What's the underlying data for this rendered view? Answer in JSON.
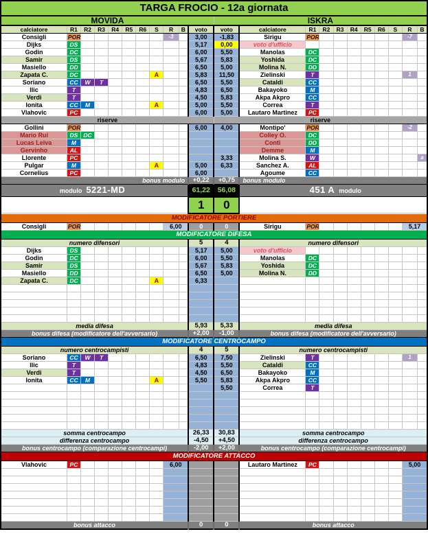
{
  "title": "TARGA FROCIO - 12a giornata",
  "home_team": "MOVIDA",
  "away_team": "ISKRA",
  "headers": {
    "player": "calciatore",
    "r": [
      "R1",
      "R2",
      "R3",
      "R4",
      "R5",
      "R6"
    ],
    "s": "S",
    "rr": "R",
    "b": "B",
    "voto": "voto"
  },
  "labels": {
    "riserve": "riserve",
    "bonus_modulo": "bonus modulo",
    "modulo": "modulo",
    "mod_portiere": "MODIFICATORE PORTIERE",
    "mod_difesa": "MODIFICATORE DIFESA",
    "mod_centrocampo": "MODIFICATORE CENTROCAMPO",
    "mod_attacco": "MODIFICATORE ATTACCO",
    "numero_difensori": "numero difensori",
    "media_difesa": "media difesa",
    "bonus_difesa": "bonus difesa (modificatore dell'avversario)",
    "numero_centrocampisti": "numero centrocampisti",
    "somma_centrocampo": "somma centrocampo",
    "differenza_centrocampo": "differenza centrocampo",
    "bonus_centrocampo": "bonus centrocampo (comparazione centrocampi)",
    "bonus_attacco": "bonus attacco"
  },
  "colors": {
    "main_green": "#92d050",
    "light_green": "#d7e4bc",
    "voto_blue": "#95b3d7",
    "role_green": "#00b050",
    "role_blue": "#0070c0",
    "role_purple": "#7030a0",
    "role_red": "#d21414",
    "role_orange": "#e8954f",
    "malus_purple": "#b2a1c7",
    "pink_row": "#d99795",
    "bar_orange": "#e26b0a",
    "bar_red": "#c00000",
    "dark_gray": "#808080",
    "mid_gray": "#9e9e9e",
    "band_gray": "#a6a6a6",
    "yellow": "#ffff00"
  },
  "lineup": {
    "home": [
      {
        "name": "Consigli",
        "roles": [
          [
            "POR",
            "por"
          ]
        ],
        "s": "",
        "r": "-3",
        "b": "",
        "voto": "3,00"
      },
      {
        "name": "Dijks",
        "roles": [
          [
            "DS",
            "df"
          ]
        ],
        "s": "",
        "r": "",
        "b": "",
        "voto": "5,17"
      },
      {
        "name": "Godin",
        "roles": [
          [
            "DC",
            "df"
          ]
        ],
        "s": "",
        "r": "",
        "b": "",
        "voto": "6,00"
      },
      {
        "name": "Samir",
        "roles": [
          [
            "DS",
            "df"
          ]
        ],
        "s": "",
        "r": "",
        "b": "",
        "voto": "5,67",
        "hl": true
      },
      {
        "name": "Masiello",
        "roles": [
          [
            "DD",
            "df"
          ]
        ],
        "s": "",
        "r": "",
        "b": "",
        "voto": "6,50"
      },
      {
        "name": "Zapata C.",
        "roles": [
          [
            "DC",
            "df"
          ]
        ],
        "s": "A",
        "r": "",
        "b": "",
        "voto": "5,83",
        "hl": true
      },
      {
        "name": "Soriano",
        "roles": [
          [
            "CC",
            "mf"
          ],
          [
            "W",
            "tq"
          ],
          [
            "T",
            "tq"
          ]
        ],
        "s": "",
        "r": "",
        "b": "",
        "voto": "6,50"
      },
      {
        "name": "Ilic",
        "roles": [
          [
            "T",
            "tq"
          ]
        ],
        "s": "",
        "r": "",
        "b": "",
        "voto": "4,83"
      },
      {
        "name": "Verdi",
        "roles": [
          [
            "T",
            "tq"
          ]
        ],
        "s": "",
        "r": "",
        "b": "",
        "voto": "4,50",
        "hl": true
      },
      {
        "name": "Ionita",
        "roles": [
          [
            "CC",
            "mf"
          ],
          [
            "M",
            "mf"
          ]
        ],
        "s": "A",
        "r": "",
        "b": "",
        "voto": "5,00"
      },
      {
        "name": "Vlahovic",
        "roles": [
          [
            "PC",
            "at"
          ]
        ],
        "s": "",
        "r": "",
        "b": "",
        "voto": "6,00"
      }
    ],
    "away": [
      {
        "name": "Sirigu",
        "roles": [
          [
            "POR",
            "por"
          ]
        ],
        "s": "",
        "r": "-7",
        "b": "",
        "voto": "-1,83"
      },
      {
        "name": "voto d'ufficio",
        "roles": [],
        "s": "",
        "r": "",
        "b": "",
        "voto": "0,00",
        "special": true,
        "voto_yellow": true
      },
      {
        "name": "Manolas",
        "roles": [
          [
            "DC",
            "df"
          ]
        ],
        "s": "",
        "r": "",
        "b": "",
        "voto": "5,50"
      },
      {
        "name": "Yoshida",
        "roles": [
          [
            "DC",
            "df"
          ]
        ],
        "s": "",
        "r": "",
        "b": "",
        "voto": "5,83",
        "hl": true
      },
      {
        "name": "Molina N.",
        "roles": [
          [
            "DD",
            "df"
          ]
        ],
        "s": "",
        "r": "",
        "b": "",
        "voto": "5,00",
        "hl": true
      },
      {
        "name": "Zielinski",
        "roles": [
          [
            "T",
            "tq"
          ]
        ],
        "s": "",
        "r": "1",
        "b": "",
        "voto": "11,50"
      },
      {
        "name": "Cataldi",
        "roles": [
          [
            "CC",
            "mf"
          ]
        ],
        "s": "",
        "r": "",
        "b": "",
        "voto": "5,50",
        "hl": true
      },
      {
        "name": "Bakayoko",
        "roles": [
          [
            "M",
            "mf"
          ]
        ],
        "s": "",
        "r": "",
        "b": "",
        "voto": "6,50"
      },
      {
        "name": "Akpa Akpro",
        "roles": [
          [
            "CC",
            "mf"
          ]
        ],
        "s": "",
        "r": "",
        "b": "",
        "voto": "5,83"
      },
      {
        "name": "Correa",
        "roles": [
          [
            "T",
            "tq"
          ]
        ],
        "s": "",
        "r": "",
        "b": "",
        "voto": "5,50"
      },
      {
        "name": "Lautaro Martinez",
        "roles": [
          [
            "PC",
            "at"
          ]
        ],
        "s": "",
        "r": "",
        "b": "",
        "voto": "5,00"
      }
    ]
  },
  "reserves": {
    "home": [
      {
        "name": "Gollini",
        "roles": [
          [
            "POR",
            "por"
          ]
        ],
        "s": "",
        "r": "",
        "b": "",
        "voto": "6,00"
      },
      {
        "name": "Mario Rui",
        "roles": [
          [
            "DS",
            "df"
          ],
          [
            "DC",
            "df"
          ]
        ],
        "s": "",
        "r": "",
        "b": "",
        "voto": "",
        "pink": true
      },
      {
        "name": "Lucas Leiva",
        "roles": [
          [
            "M",
            "mf"
          ]
        ],
        "s": "",
        "r": "",
        "b": "",
        "voto": "",
        "pink": true
      },
      {
        "name": "Gervinho",
        "roles": [
          [
            "AL",
            "at"
          ]
        ],
        "s": "",
        "r": "",
        "b": "",
        "voto": "",
        "pink": true
      },
      {
        "name": "Llorente",
        "roles": [
          [
            "PC",
            "at"
          ]
        ],
        "s": "",
        "r": "",
        "b": "",
        "voto": ""
      },
      {
        "name": "Pulgar",
        "roles": [
          [
            "M",
            "mf"
          ]
        ],
        "s": "A",
        "r": "",
        "b": "",
        "voto": "5,00"
      },
      {
        "name": "Cornelius",
        "roles": [
          [
            "PC",
            "at"
          ]
        ],
        "s": "",
        "r": "",
        "b": "",
        "voto": "6,00"
      }
    ],
    "away": [
      {
        "name": "Montipo'",
        "roles": [
          [
            "POR",
            "por"
          ]
        ],
        "s": "",
        "r": "-2",
        "b": "",
        "voto": "4,00"
      },
      {
        "name": "Colley O.",
        "roles": [
          [
            "DC",
            "df"
          ]
        ],
        "s": "",
        "r": "",
        "b": "",
        "voto": "",
        "pink": true
      },
      {
        "name": "Conti",
        "roles": [
          [
            "DD",
            "df"
          ]
        ],
        "s": "",
        "r": "",
        "b": "",
        "voto": "",
        "pink": true
      },
      {
        "name": "Demme",
        "roles": [
          [
            "M",
            "mf"
          ]
        ],
        "s": "",
        "r": "",
        "b": "",
        "voto": "",
        "pink": true
      },
      {
        "name": "Molina S.",
        "roles": [
          [
            "W",
            "tq"
          ]
        ],
        "s": "",
        "r": "",
        "b": "a",
        "voto": "3,33"
      },
      {
        "name": "Sanchez A.",
        "roles": [
          [
            "AL",
            "at"
          ]
        ],
        "s": "",
        "r": "",
        "b": "",
        "voto": "6,33"
      },
      {
        "name": "Agoume",
        "roles": [
          [
            "CC",
            "mf"
          ]
        ],
        "s": "",
        "r": "",
        "b": "",
        "voto": ""
      }
    ]
  },
  "bonus_modulo": {
    "home": "+0,22",
    "away": "+0,75"
  },
  "modulo": {
    "home": "5221-MD",
    "away": "451 A",
    "home_total": "61,22",
    "away_total": "56,08"
  },
  "score": {
    "home": "1",
    "away": "0"
  },
  "portiere": {
    "h": {
      "name": "Consigli",
      "roles": [
        [
          "POR",
          "por"
        ]
      ]
    },
    "hv": "6,00",
    "center": [
      "0",
      "0"
    ],
    "av": "5,17",
    "a": {
      "name": "Sirigu",
      "roles": [
        [
          "POR",
          "por"
        ]
      ]
    }
  },
  "difesa": {
    "numero": [
      "5",
      "4"
    ],
    "rows": [
      {
        "h": {
          "name": "Dijks",
          "roles": [
            [
              "DS",
              "df"
            ]
          ],
          "s": ""
        },
        "hv": "5,17",
        "av": "5,00",
        "a": {
          "name": "voto d'ufficio",
          "roles": [],
          "special": true
        }
      },
      {
        "h": {
          "name": "Godin",
          "roles": [
            [
              "DC",
              "df"
            ]
          ],
          "s": ""
        },
        "hv": "6,00",
        "av": "5,50",
        "a": {
          "name": "Manolas",
          "roles": [
            [
              "DC",
              "df"
            ]
          ]
        }
      },
      {
        "h": {
          "name": "Samir",
          "roles": [
            [
              "DS",
              "df"
            ]
          ],
          "s": "",
          "hl": true
        },
        "hv": "5,67",
        "av": "5,83",
        "a": {
          "name": "Yoshida",
          "roles": [
            [
              "DC",
              "df"
            ]
          ],
          "hl": true
        }
      },
      {
        "h": {
          "name": "Masiello",
          "roles": [
            [
              "DD",
              "df"
            ]
          ],
          "s": ""
        },
        "hv": "6,50",
        "av": "5,00",
        "a": {
          "name": "Molina N.",
          "roles": [
            [
              "DD",
              "df"
            ]
          ],
          "hl": true
        }
      },
      {
        "h": {
          "name": "Zapata C.",
          "roles": [
            [
              "DC",
              "df"
            ]
          ],
          "s": "A",
          "hl": true
        },
        "hv": "6,33",
        "av": "",
        "a": null
      }
    ],
    "empty_rows": 5,
    "media": [
      "5,93",
      "5,33"
    ],
    "bonus": [
      "+2,00",
      "-1,00"
    ]
  },
  "centrocampo": {
    "numero": [
      "4",
      "5"
    ],
    "rows": [
      {
        "h": {
          "name": "Soriano",
          "roles": [
            [
              "CC",
              "mf"
            ],
            [
              "W",
              "tq"
            ],
            [
              "T",
              "tq"
            ]
          ],
          "s": ""
        },
        "hv": "6,50",
        "av": "7,50",
        "a": {
          "name": "Zielinski",
          "roles": [
            [
              "T",
              "tq"
            ]
          ],
          "r": "1"
        }
      },
      {
        "h": {
          "name": "Ilic",
          "roles": [
            [
              "T",
              "tq"
            ]
          ],
          "s": ""
        },
        "hv": "4,83",
        "av": "5,50",
        "a": {
          "name": "Cataldi",
          "roles": [
            [
              "CC",
              "mf"
            ]
          ],
          "hl": true
        }
      },
      {
        "h": {
          "name": "Verdi",
          "roles": [
            [
              "T",
              "tq"
            ]
          ],
          "s": "",
          "hl": true
        },
        "hv": "4,50",
        "av": "6,50",
        "a": {
          "name": "Bakayoko",
          "roles": [
            [
              "M",
              "mf"
            ]
          ]
        }
      },
      {
        "h": {
          "name": "Ionita",
          "roles": [
            [
              "CC",
              "mf"
            ],
            [
              "M",
              "mf"
            ]
          ],
          "s": "A"
        },
        "hv": "5,50",
        "av": "5,83",
        "a": {
          "name": "Akpa Akpro",
          "roles": [
            [
              "CC",
              "mf"
            ]
          ]
        }
      },
      {
        "h": null,
        "hv": "",
        "av": "5,50",
        "a": {
          "name": "Correa",
          "roles": [
            [
              "T",
              "tq"
            ]
          ]
        }
      }
    ],
    "empty_rows": 5,
    "somma": [
      "26,33",
      "30,83"
    ],
    "differenza": [
      "-4,50",
      "+4,50"
    ],
    "bonus": [
      "-2,00",
      "+2,00"
    ]
  },
  "attacco": {
    "rows": [
      {
        "h": {
          "name": "Vlahovic",
          "roles": [
            [
              "PC",
              "at"
            ]
          ]
        },
        "hv": "6,00",
        "av": "5,00",
        "a": {
          "name": "Lautaro Martinez",
          "roles": [
            [
              "PC",
              "at"
            ]
          ]
        }
      }
    ],
    "empty_rows": 7,
    "bonus": [
      "0",
      "0"
    ]
  }
}
